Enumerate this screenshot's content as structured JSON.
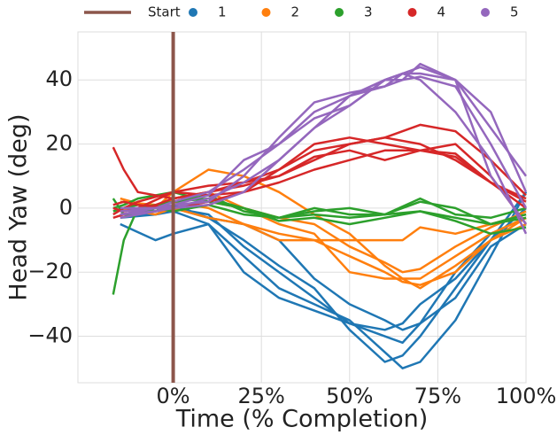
{
  "chart_data": {
    "type": "line",
    "xlabel": "Time (% Completion)",
    "ylabel": "Head Yaw (deg)",
    "xlim": [
      -27,
      100
    ],
    "ylim": [
      -54.5,
      55
    ],
    "xticks": [
      {
        "value": 0,
        "label": "0%"
      },
      {
        "value": 25,
        "label": "25%"
      },
      {
        "value": 50,
        "label": "50%"
      },
      {
        "value": 75,
        "label": "75%"
      },
      {
        "value": 100,
        "label": "100%"
      }
    ],
    "yticks": [
      {
        "value": -40,
        "label": "−40"
      },
      {
        "value": -20,
        "label": "−20"
      },
      0,
      20,
      40
    ],
    "grid": true,
    "legend": "top",
    "start": {
      "name": "Start",
      "color": "#8c564b",
      "x": 0
    },
    "series": [
      {
        "name": "1",
        "color": "#1f77b4",
        "trials": [
          {
            "x": [
              -15,
              -5,
              0,
              10,
              20,
              30,
              40,
              50,
              60,
              65,
              70,
              80,
              90,
              100
            ],
            "values": [
              -5,
              -10,
              -8,
              -5,
              -15,
              -25,
              -30,
              -35,
              -45,
              -50,
              -48,
              -35,
              -15,
              5
            ]
          },
          {
            "x": [
              -15,
              -5,
              0,
              10,
              20,
              30,
              40,
              50,
              60,
              65,
              70,
              80,
              90,
              100
            ],
            "values": [
              -2,
              -2,
              0,
              -2,
              -12,
              -20,
              -28,
              -36,
              -38,
              -36,
              -30,
              -22,
              -10,
              0
            ]
          },
          {
            "x": [
              -15,
              -5,
              0,
              10,
              20,
              30,
              40,
              50,
              60,
              65,
              70,
              80,
              90,
              100
            ],
            "values": [
              0,
              -1,
              0,
              -3,
              -10,
              -18,
              -25,
              -38,
              -48,
              -46,
              -40,
              -25,
              -10,
              5
            ]
          },
          {
            "x": [
              -15,
              -5,
              0,
              10,
              20,
              30,
              40,
              50,
              60,
              65,
              70,
              80,
              90,
              100
            ],
            "values": [
              -3,
              -2,
              -1,
              -5,
              -20,
              -28,
              -32,
              -36,
              -40,
              -42,
              -36,
              -20,
              -8,
              -3
            ]
          },
          {
            "x": [
              -15,
              -5,
              0,
              10,
              20,
              30,
              40,
              50,
              60,
              65,
              70,
              80,
              90,
              100
            ],
            "values": [
              -1,
              0,
              1,
              -3,
              -5,
              -10,
              -22,
              -30,
              -35,
              -38,
              -36,
              -28,
              -12,
              -5
            ]
          }
        ]
      },
      {
        "name": "2",
        "color": "#ff7f0e",
        "trials": [
          {
            "x": [
              -15,
              -5,
              0,
              10,
              20,
              30,
              40,
              50,
              60,
              65,
              70,
              80,
              90,
              100
            ],
            "values": [
              3,
              0,
              5,
              12,
              10,
              5,
              -2,
              -8,
              -18,
              -22,
              -22,
              -15,
              -8,
              -3
            ]
          },
          {
            "x": [
              -15,
              -5,
              0,
              10,
              20,
              30,
              40,
              50,
              60,
              65,
              70,
              80,
              90,
              100
            ],
            "values": [
              -2,
              -1,
              0,
              -3,
              -5,
              -8,
              -10,
              -15,
              -20,
              -23,
              -24,
              -20,
              -10,
              -5
            ]
          },
          {
            "x": [
              -15,
              -5,
              0,
              10,
              20,
              30,
              40,
              50,
              60,
              65,
              70,
              80,
              90,
              100
            ],
            "values": [
              0,
              -2,
              0,
              2,
              0,
              -5,
              -8,
              -20,
              -22,
              -22,
              -25,
              -18,
              -10,
              -3
            ]
          },
          {
            "x": [
              -15,
              -5,
              0,
              10,
              20,
              30,
              40,
              50,
              60,
              65,
              70,
              80,
              90,
              100
            ],
            "values": [
              2,
              1,
              2,
              0,
              -5,
              -10,
              -10,
              -10,
              -10,
              -10,
              -6,
              -8,
              -5,
              -2
            ]
          },
          {
            "x": [
              -15,
              -5,
              0,
              10,
              20,
              30,
              40,
              50,
              60,
              65,
              70,
              80,
              90,
              100
            ],
            "values": [
              -1,
              0,
              3,
              5,
              0,
              -3,
              -5,
              -12,
              -17,
              -20,
              -19,
              -12,
              -6,
              -1
            ]
          }
        ]
      },
      {
        "name": "3",
        "color": "#2ca02c",
        "trials": [
          {
            "x": [
              -17,
              -14,
              -10,
              0,
              10,
              20,
              30,
              40,
              50,
              60,
              70,
              80,
              90,
              100
            ],
            "values": [
              -27,
              -10,
              0,
              2,
              3,
              0,
              -3,
              -2,
              -3,
              -2,
              -1,
              -3,
              -5,
              -2
            ]
          },
          {
            "x": [
              -17,
              -14,
              -10,
              0,
              10,
              20,
              30,
              40,
              50,
              60,
              70,
              80,
              90,
              100
            ],
            "values": [
              3,
              -2,
              -2,
              2,
              4,
              -1,
              -3,
              -1,
              0,
              -2,
              2,
              0,
              -5,
              -3
            ]
          },
          {
            "x": [
              -17,
              -14,
              -10,
              0,
              10,
              20,
              30,
              40,
              50,
              60,
              70,
              80,
              90,
              100
            ],
            "values": [
              0,
              1,
              3,
              5,
              2,
              0,
              -4,
              -3,
              -5,
              -3,
              -1,
              -4,
              -8,
              -6
            ]
          },
          {
            "x": [
              -17,
              -14,
              -10,
              0,
              10,
              20,
              30,
              40,
              50,
              60,
              70,
              80,
              90,
              100
            ],
            "values": [
              -1,
              0,
              1,
              -1,
              1,
              -2,
              -3,
              0,
              -2,
              -2,
              3,
              -2,
              -3,
              0
            ]
          }
        ]
      },
      {
        "name": "4",
        "color": "#d62728",
        "trials": [
          {
            "x": [
              -17,
              -14,
              -10,
              0,
              10,
              20,
              30,
              40,
              50,
              60,
              70,
              80,
              90,
              100
            ],
            "values": [
              19,
              12,
              5,
              3,
              5,
              8,
              12,
              18,
              20,
              22,
              26,
              24,
              15,
              4
            ]
          },
          {
            "x": [
              -17,
              -14,
              -10,
              0,
              10,
              20,
              30,
              40,
              50,
              60,
              70,
              80,
              90,
              100
            ],
            "values": [
              0,
              -1,
              0,
              5,
              7,
              8,
              10,
              15,
              20,
              22,
              20,
              15,
              8,
              2
            ]
          },
          {
            "x": [
              -17,
              -14,
              -10,
              0,
              10,
              20,
              30,
              40,
              50,
              60,
              70,
              80,
              90,
              100
            ],
            "values": [
              -2,
              0,
              2,
              5,
              4,
              5,
              8,
              12,
              15,
              18,
              18,
              16,
              8,
              0
            ]
          },
          {
            "x": [
              -17,
              -14,
              -10,
              0,
              10,
              20,
              30,
              40,
              50,
              60,
              70,
              80,
              90,
              100
            ],
            "values": [
              1,
              2,
              1,
              0,
              2,
              5,
              12,
              20,
              22,
              20,
              18,
              20,
              10,
              -5
            ]
          },
          {
            "x": [
              -17,
              -14,
              -10,
              0,
              10,
              20,
              30,
              40,
              50,
              60,
              70,
              80,
              90,
              100
            ],
            "values": [
              -3,
              -2,
              -1,
              3,
              5,
              7,
              10,
              16,
              18,
              15,
              18,
              17,
              8,
              3
            ]
          }
        ]
      },
      {
        "name": "5",
        "color": "#9467bd",
        "trials": [
          {
            "x": [
              -15,
              -5,
              0,
              10,
              20,
              30,
              40,
              50,
              60,
              65,
              70,
              80,
              90,
              100
            ],
            "values": [
              -2,
              0,
              2,
              5,
              12,
              20,
              30,
              35,
              40,
              42,
              44,
              40,
              25,
              10
            ]
          },
          {
            "x": [
              -15,
              -5,
              0,
              10,
              20,
              30,
              40,
              50,
              60,
              65,
              70,
              80,
              90,
              100
            ],
            "values": [
              0,
              0,
              0,
              3,
              8,
              15,
              25,
              32,
              40,
              42,
              42,
              40,
              30,
              5
            ]
          },
          {
            "x": [
              -15,
              -5,
              0,
              10,
              20,
              30,
              40,
              50,
              60,
              65,
              70,
              80,
              90,
              100
            ],
            "values": [
              -3,
              -1,
              1,
              2,
              10,
              22,
              33,
              36,
              38,
              40,
              41,
              38,
              20,
              0
            ]
          },
          {
            "x": [
              -15,
              -5,
              0,
              10,
              20,
              30,
              40,
              50,
              60,
              65,
              70,
              80,
              90,
              100
            ],
            "values": [
              -1,
              0,
              1,
              4,
              15,
              20,
              28,
              32,
              40,
              40,
              45,
              40,
              10,
              -5
            ]
          },
          {
            "x": [
              -15,
              -5,
              0,
              10,
              20,
              30,
              40,
              50,
              60,
              65,
              70,
              80,
              90,
              100
            ],
            "values": [
              -2,
              -1,
              0,
              1,
              5,
              15,
              25,
              35,
              38,
              42,
              40,
              30,
              15,
              -8
            ]
          }
        ]
      }
    ]
  }
}
